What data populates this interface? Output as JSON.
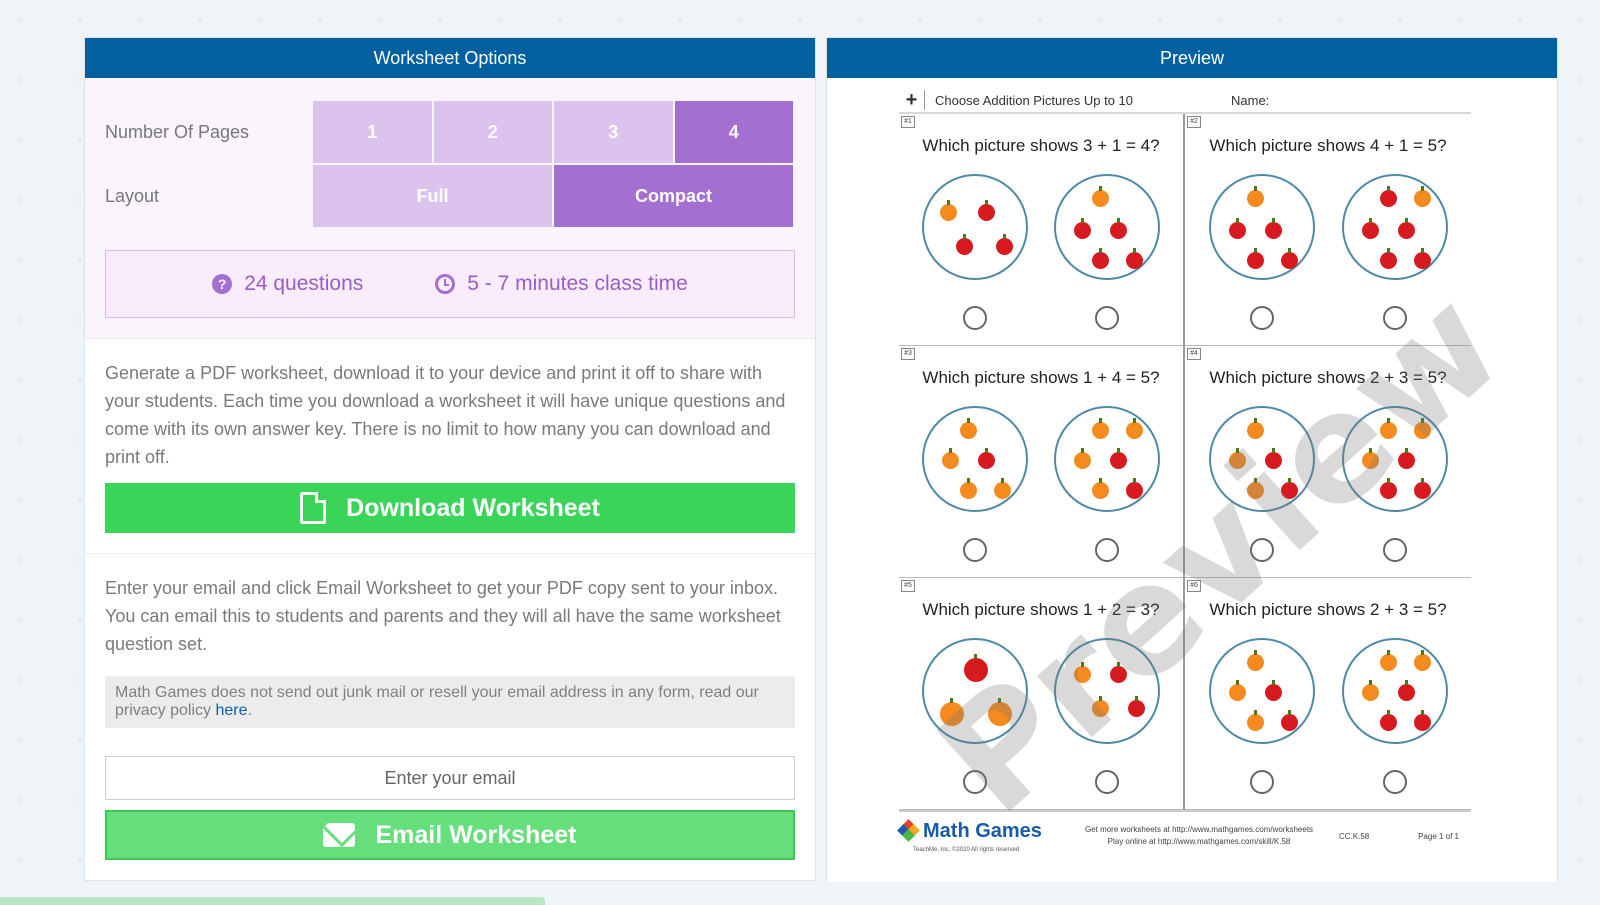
{
  "options_panel": {
    "title": "Worksheet Options",
    "pages_label": "Number Of Pages",
    "pages": [
      "1",
      "2",
      "3",
      "4"
    ],
    "pages_selected": "4",
    "layout_label": "Layout",
    "layouts": [
      "Full",
      "Compact"
    ],
    "layout_selected": "Compact",
    "questions": "24 questions",
    "class_time": "5 - 7 minutes class time"
  },
  "download": {
    "description": "Generate a PDF worksheet, download it to your device and print it off to share with your students. Each time you download a worksheet it will have unique questions and come with its own answer key. There is no limit to how many you can download and print off.",
    "button_label": "Download Worksheet"
  },
  "email": {
    "description": "Enter your email and click Email Worksheet to get your PDF copy sent to your inbox. You can email this to students and parents and they will all have the same worksheet question set.",
    "notice": "Math Games does not send out junk mail or resell your email address in any form, read our privacy policy ",
    "notice_link": "here",
    "notice_end": ".",
    "input_placeholder": "Enter your email",
    "input_value": "",
    "button_label": "Email Worksheet"
  },
  "preview": {
    "title": "Preview",
    "watermark": "Preview",
    "sheet_title": "Choose Addition Pictures Up to 10",
    "name_label": "Name:",
    "plus_sign": "+",
    "questions": [
      {
        "num": "#1",
        "text": "Which picture shows 3 + 1 = 4?"
      },
      {
        "num": "#2",
        "text": "Which picture shows 4 + 1 = 5?"
      },
      {
        "num": "#3",
        "text": "Which picture shows 1 + 4 = 5?"
      },
      {
        "num": "#4",
        "text": "Which picture shows 2 + 3 = 5?"
      },
      {
        "num": "#5",
        "text": "Which picture shows 1 + 2 = 3?"
      },
      {
        "num": "#6",
        "text": "Which picture shows 2 + 3 = 5?"
      }
    ],
    "footer": {
      "logo_text": "Math Games",
      "logo_sub": "TeachMe, Inc. ©2020 All rights reserved",
      "more_link": "Get more worksheets at http://www.mathgames.com/worksheets",
      "play_link": "Play online at http://www.mathgames.com/skill/K.58",
      "code": "CC.K.58",
      "page": "Page 1 of 1"
    }
  },
  "colors": {
    "header_blue": "#0060a0",
    "accent_purple": "#a36fd1",
    "light_purple": "#dbc3ee",
    "green": "#3ad458",
    "apple": "#d71920",
    "orange": "#f58a1f"
  }
}
